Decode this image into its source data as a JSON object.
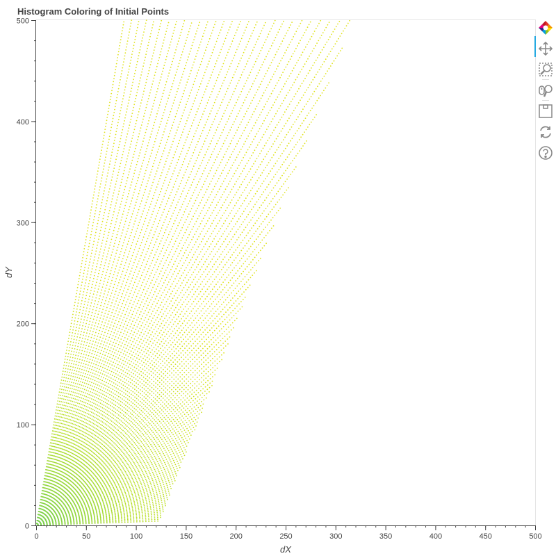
{
  "chart_data": {
    "type": "scatter",
    "title": "Histogram Coloring of Initial Points",
    "xlabel": "dX",
    "ylabel": "dY",
    "xlim": [
      0,
      500
    ],
    "ylim": [
      0,
      500
    ],
    "x_ticks": [
      0,
      50,
      100,
      150,
      200,
      250,
      300,
      350,
      400,
      450,
      500
    ],
    "y_ticks": [
      0,
      100,
      200,
      300,
      400,
      500
    ],
    "grid": false,
    "rays": {
      "description_of_pattern": "radial fan of point rays emanating from origin",
      "angle_range_deg": [
        2,
        80
      ],
      "ray_count": 96,
      "point_step": 3,
      "max_length_at_low_angle": 122,
      "outer_edge_line": {
        "x_at_y0": 122,
        "x_at_y500": 318
      },
      "top_clip_y": 500
    },
    "colors": {
      "near_origin": "#7ad151",
      "mid": "#b5de2b",
      "far": "#e0e31f",
      "outer": "#d9e01f"
    }
  },
  "toolbar": {
    "tools": [
      {
        "name": "bokeh-logo-icon"
      },
      {
        "name": "pan-icon"
      },
      {
        "name": "box-zoom-icon"
      },
      {
        "name": "wheel-zoom-icon"
      },
      {
        "name": "save-icon"
      },
      {
        "name": "reset-icon"
      },
      {
        "name": "help-icon"
      }
    ]
  }
}
